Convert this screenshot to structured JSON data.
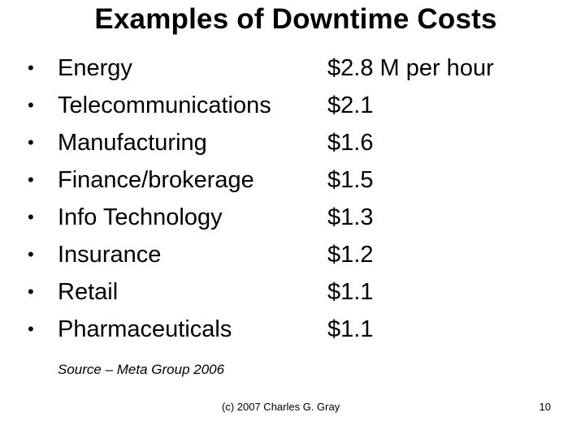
{
  "slide": {
    "title": "Examples of Downtime Costs",
    "bullet_glyph": "•",
    "items": [
      {
        "label": "Energy",
        "value": "$2.8 M per hour"
      },
      {
        "label": "Telecommunications",
        "value": "$2.1"
      },
      {
        "label": "Manufacturing",
        "value": "$1.6"
      },
      {
        "label": "Finance/brokerage",
        "value": "$1.5"
      },
      {
        "label": "Info Technology",
        "value": "$1.3"
      },
      {
        "label": "Insurance",
        "value": "$1.2"
      },
      {
        "label": "Retail",
        "value": "$1.1"
      },
      {
        "label": "Pharmaceuticals",
        "value": "$1.1"
      }
    ],
    "source": "Source – Meta Group 2006",
    "footer": "(c) 2007 Charles G. Gray",
    "page_number": "10"
  }
}
